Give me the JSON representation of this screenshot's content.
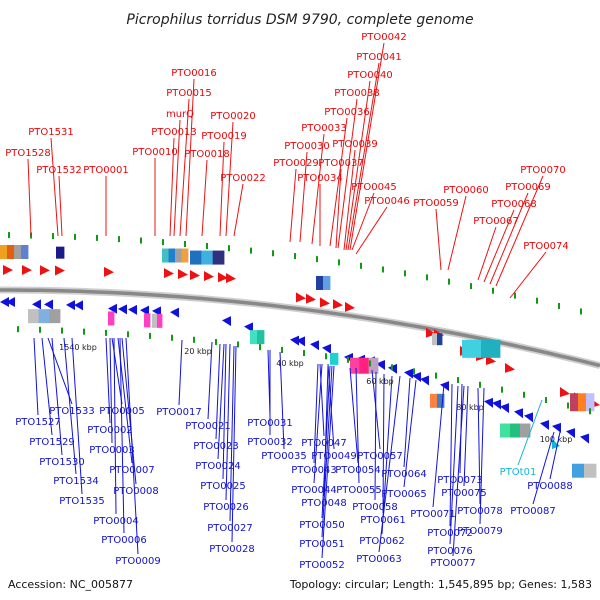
{
  "title": "Picrophilus torridus DSM 9790, complete genome",
  "footer": {
    "accession": "Accession: NC_005877",
    "summary": "Topology: circular; Length: 1,545,895 bp; Genes: 1,583"
  },
  "colors": {
    "forward": "#ee1111",
    "reverse": "#1111dd",
    "rna": "#13b5d8",
    "backbone": "#888888",
    "tick": "#119911"
  },
  "scale_labels": [
    "1540 kbp",
    "20 kbp",
    "40 kbp",
    "60 kbp",
    "80 kbp",
    "100 kbp"
  ],
  "top_labels": [
    "PTO1528",
    "PTO1531",
    "PTO1532",
    "PTO0001",
    "PTO0010",
    "PTO0013",
    "murQ",
    "PTO0015",
    "PTO0016",
    "PTO0018",
    "PTO0019",
    "PTO0020",
    "PTO0022",
    "PTO0029",
    "PTO0030",
    "PTO0033",
    "PTO0034",
    "PTO0036",
    "PTO0037",
    "PTO0038",
    "PTO0039",
    "PTO0040",
    "PTO0041",
    "PTO0042",
    "PTO0045",
    "PTO0046",
    "PTO0059",
    "PTO0060",
    "PTO0067",
    "PTO0068",
    "PTO0069",
    "PTO0070",
    "PTO0074"
  ],
  "bottom_labels": [
    "PTO1527",
    "PTO1529",
    "PTO1530",
    "PTO1533",
    "PTO1534",
    "PTO1535",
    "PTO0002",
    "PTO0003",
    "PTO0004",
    "PTO0005",
    "PTO0006",
    "PTO0007",
    "PTO0008",
    "PTO0009",
    "PTO0017",
    "PTO0021",
    "PTO0023",
    "PTO0024",
    "PTO0025",
    "PTO0026",
    "PTO0027",
    "PTO0028",
    "PTO0031",
    "PTO0032",
    "PTO0035",
    "PTO0043",
    "PTO0044",
    "PTO0047",
    "PTO0048",
    "PTO0049",
    "PTO0050",
    "PTO0051",
    "PTO0052",
    "PTO0054",
    "PTO0055",
    "PTO0057",
    "PTO0058",
    "PTO0061",
    "PTO0062",
    "PTO0063",
    "PTO0064",
    "PTO0065",
    "PTO0071",
    "PTO0072",
    "PTO0073",
    "PTO0075",
    "PTO0076",
    "PTO0077",
    "PTO0078",
    "PTO0079",
    "PTO0087",
    "PTO0088"
  ],
  "rna_labels": [
    "PTOt01"
  ]
}
